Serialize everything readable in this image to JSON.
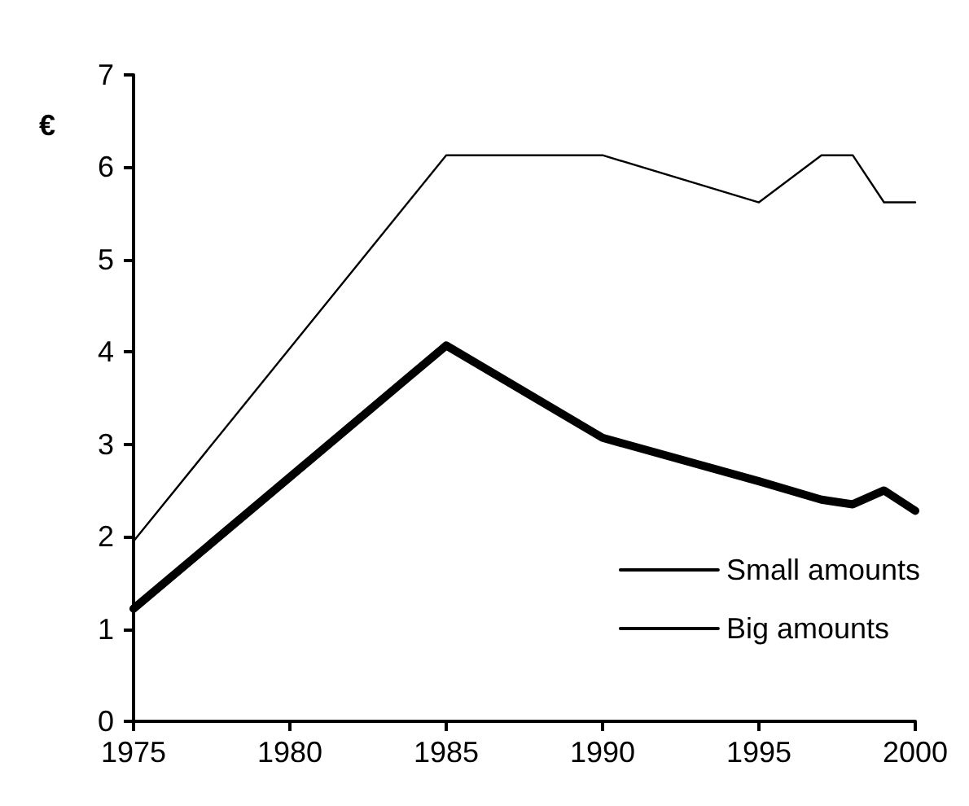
{
  "chart_data": {
    "type": "line",
    "ylabel": "€",
    "x": [
      1975,
      1985,
      1990,
      1995,
      1997,
      1998,
      1999,
      2000
    ],
    "series": [
      {
        "name": "Small amounts",
        "color": "#000000",
        "values": [
          1.95,
          6.13,
          6.13,
          5.62,
          6.13,
          6.13,
          5.62,
          5.62
        ]
      },
      {
        "name": "Big amounts",
        "color": "#000000",
        "values": [
          1.22,
          4.07,
          3.07,
          2.6,
          2.4,
          2.35,
          2.5,
          2.28
        ]
      }
    ],
    "xlim": [
      1975,
      2000
    ],
    "xticks": [
      1975,
      1980,
      1985,
      1990,
      1995,
      2000
    ],
    "ylim": [
      0,
      7
    ],
    "yticks": [
      0,
      1,
      2,
      3,
      4,
      5,
      6,
      7
    ],
    "grid": false,
    "legend": "bottom right",
    "marker": "none",
    "line_style": "solid"
  }
}
